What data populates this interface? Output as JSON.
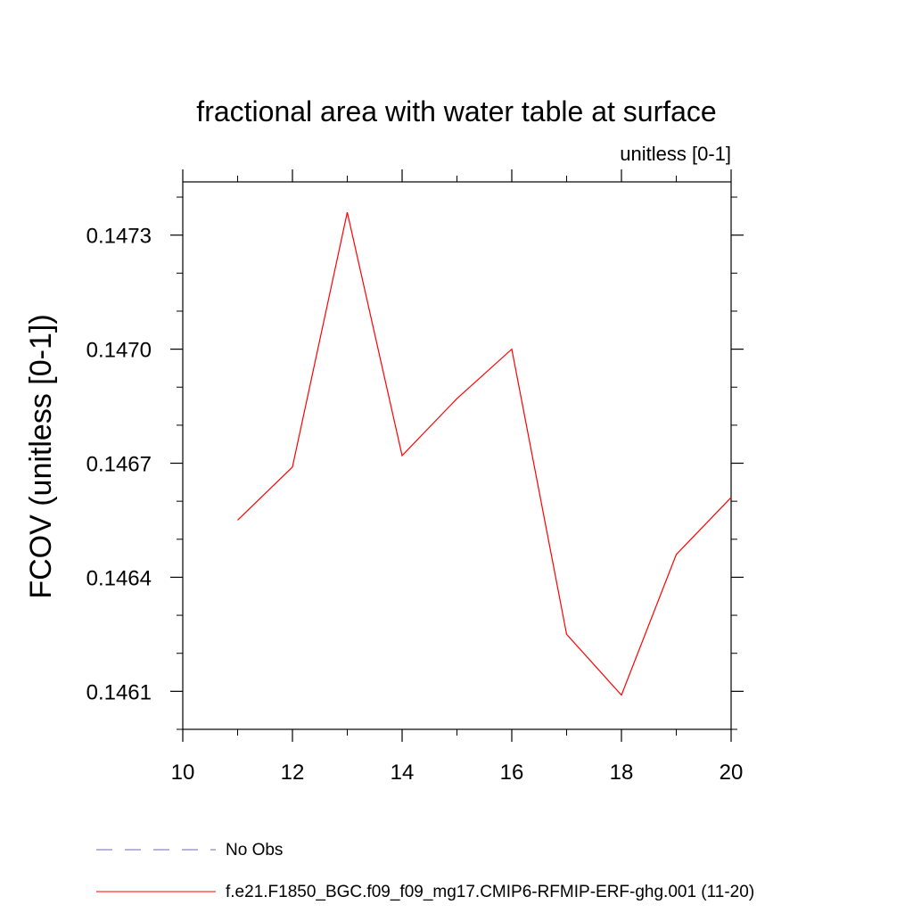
{
  "chart_data": {
    "type": "line",
    "title": "fractional area with water table at surface",
    "units_label": "unitless [0-1]",
    "xlabel": "",
    "ylabel": "FCOV  (unitless [0-1])",
    "xlim": [
      10,
      20
    ],
    "ylim": [
      0.146,
      0.14744
    ],
    "x_ticks": [
      10,
      12,
      14,
      16,
      18,
      20
    ],
    "x_tick_labels": [
      "10",
      "12",
      "14",
      "16",
      "18",
      "20"
    ],
    "x_minor_ticks": [
      11,
      13,
      15,
      17,
      19
    ],
    "y_ticks": [
      0.1461,
      0.1464,
      0.1467,
      0.147,
      0.1473
    ],
    "y_tick_labels": [
      "0.1461",
      "0.1464",
      "0.1467",
      "0.1470",
      "0.1473"
    ],
    "y_minor_step": 0.0001,
    "grid": false,
    "series": [
      {
        "name": "f.e21.F1850_BGC.f09_f09_mg17.CMIP6-RFMIP-ERF-ghg.001 (11-20)",
        "color": "#ff0000",
        "style": "solid",
        "x": [
          11,
          12,
          13,
          14,
          15,
          16,
          17,
          18,
          19,
          20
        ],
        "y": [
          0.14655,
          0.14669,
          0.14736,
          0.14672,
          0.14687,
          0.147,
          0.14625,
          0.14609,
          0.14646,
          0.14661
        ]
      }
    ],
    "legend": {
      "placement": "bottom-left",
      "entries": [
        {
          "label": "No Obs",
          "color": "#6f6aa8",
          "style": "dashed"
        },
        {
          "label": "f.e21.F1850_BGC.f09_f09_mg17.CMIP6-RFMIP-ERF-ghg.001 (11-20)",
          "color": "#ff0000",
          "style": "solid"
        }
      ]
    }
  }
}
